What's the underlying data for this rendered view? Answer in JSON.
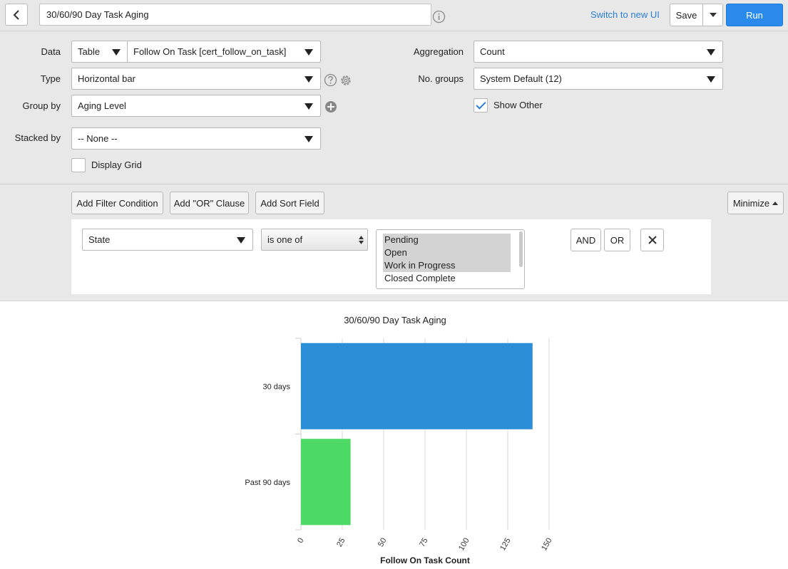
{
  "header": {
    "report_title": "30/60/90 Day Task Aging",
    "switch_link": "Switch to new UI",
    "save_label": "Save",
    "run_label": "Run"
  },
  "config": {
    "data_label": "Data",
    "data_source_type": "Table",
    "data_table": "Follow On Task [cert_follow_on_task]",
    "type_label": "Type",
    "type_value": "Horizontal bar",
    "group_by_label": "Group by",
    "group_by_value": "Aging Level",
    "stacked_by_label": "Stacked by",
    "stacked_by_value": "-- None --",
    "display_grid_label": "Display Grid",
    "display_grid_checked": false,
    "aggregation_label": "Aggregation",
    "aggregation_value": "Count",
    "no_groups_label": "No. groups",
    "no_groups_value": "System Default (12)",
    "show_other_label": "Show Other",
    "show_other_checked": true
  },
  "filters": {
    "add_condition": "Add Filter Condition",
    "add_or": "Add \"OR\" Clause",
    "add_sort": "Add Sort Field",
    "minimize": "Minimize",
    "field": "State",
    "operator": "is one of",
    "options": [
      {
        "label": "Pending",
        "selected": true
      },
      {
        "label": "Open",
        "selected": true
      },
      {
        "label": "Work in Progress",
        "selected": true
      },
      {
        "label": "Closed Complete",
        "selected": false
      }
    ],
    "and_label": "AND",
    "or_label": "OR"
  },
  "chart_data": {
    "type": "bar",
    "orientation": "horizontal",
    "title": "30/60/90 Day Task Aging",
    "xlabel": "Follow On Task Count",
    "ylabel": "",
    "categories": [
      "30 days",
      "Past 90 days"
    ],
    "values": [
      140,
      30
    ],
    "colors": [
      "#2a8fd6",
      "#4cd964"
    ],
    "xlim": [
      0,
      150
    ],
    "xticks": [
      0,
      25,
      50,
      75,
      100,
      125,
      150
    ],
    "grid": true
  }
}
